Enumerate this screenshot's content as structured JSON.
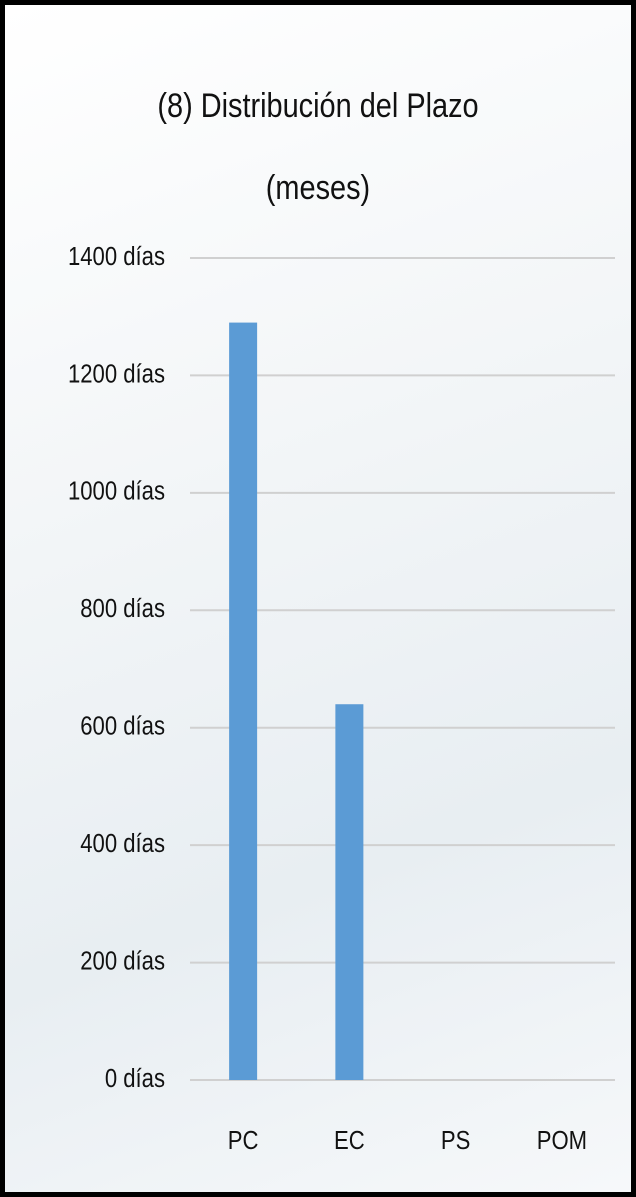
{
  "chart_data": {
    "type": "bar",
    "title": "(8) Distribución del Plazo (meses)",
    "categories": [
      "PC",
      "EC",
      "PS",
      "POM"
    ],
    "values": [
      1290,
      640,
      0,
      0
    ],
    "color": "#5b9bd5",
    "ylim": [
      0,
      1400
    ],
    "yticks": [
      {
        "value": 0,
        "label": "0 días"
      },
      {
        "value": 200,
        "label": "200 días"
      },
      {
        "value": 400,
        "label": "400 días"
      },
      {
        "value": 600,
        "label": "600 días"
      },
      {
        "value": 800,
        "label": "800 días"
      },
      {
        "value": 1000,
        "label": "1000 días"
      },
      {
        "value": 1200,
        "label": "1200 días"
      },
      {
        "value": 1400,
        "label": "1400 días"
      }
    ],
    "grid": true
  }
}
